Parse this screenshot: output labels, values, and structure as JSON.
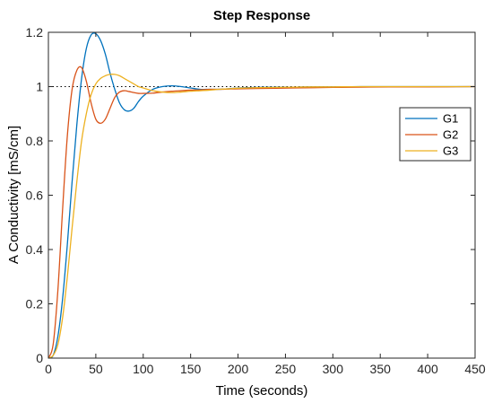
{
  "chart_data": {
    "type": "line",
    "title": "Step Response",
    "xlabel": "Time (seconds)",
    "ylabel": "A Conductivity [mS/cm]",
    "xlim": [
      0,
      450
    ],
    "ylim": [
      0,
      1.2
    ],
    "xticks": [
      0,
      50,
      100,
      150,
      200,
      250,
      300,
      350,
      400,
      450
    ],
    "yticks": [
      0,
      0.2,
      0.4,
      0.6,
      0.8,
      1,
      1.2
    ],
    "xtick_labels": [
      "0",
      "50",
      "100",
      "150",
      "200",
      "250",
      "300",
      "350",
      "400",
      "450"
    ],
    "ytick_labels": [
      "0",
      "0.2",
      "0.4",
      "0.6",
      "0.8",
      "1",
      "1.2"
    ],
    "grid": false,
    "reference_line": {
      "y": 1,
      "style": "dotted",
      "color": "#000000"
    },
    "legend": {
      "placement": "upper-right"
    },
    "series": [
      {
        "name": "G1",
        "color": "#0072BD",
        "x": [
          0,
          5,
          10,
          15,
          20,
          25,
          30,
          35,
          40,
          45,
          50,
          55,
          60,
          65,
          70,
          75,
          80,
          85,
          90,
          95,
          100,
          110,
          120,
          130,
          140,
          150,
          160,
          170,
          180,
          190,
          200,
          220,
          240,
          260,
          280,
          300,
          330,
          360,
          400,
          450
        ],
        "values": [
          0,
          0.01,
          0.08,
          0.22,
          0.42,
          0.65,
          0.86,
          1.03,
          1.14,
          1.19,
          1.195,
          1.17,
          1.12,
          1.05,
          0.99,
          0.94,
          0.915,
          0.91,
          0.92,
          0.945,
          0.965,
          0.99,
          1.0,
          1.003,
          1.0,
          0.995,
          0.99,
          0.99,
          0.99,
          0.992,
          0.995,
          0.997,
          0.998,
          0.998,
          0.999,
          0.999,
          1.0,
          1.0,
          1.0,
          1.0
        ]
      },
      {
        "name": "G2",
        "color": "#D95319",
        "x": [
          0,
          5,
          10,
          15,
          20,
          25,
          30,
          35,
          40,
          45,
          50,
          55,
          60,
          65,
          70,
          75,
          80,
          85,
          90,
          95,
          100,
          110,
          120,
          130,
          140,
          150,
          160,
          170,
          180,
          190,
          200,
          220,
          240,
          260,
          280,
          300,
          330,
          360,
          400,
          450
        ],
        "values": [
          0,
          0.05,
          0.25,
          0.55,
          0.82,
          0.99,
          1.06,
          1.07,
          1.02,
          0.94,
          0.88,
          0.865,
          0.88,
          0.92,
          0.96,
          0.98,
          0.985,
          0.982,
          0.978,
          0.975,
          0.975,
          0.976,
          0.98,
          0.983,
          0.985,
          0.987,
          0.988,
          0.99,
          0.99,
          0.991,
          0.992,
          0.993,
          0.994,
          0.995,
          0.996,
          0.997,
          0.998,
          0.999,
          0.999,
          1.0
        ]
      },
      {
        "name": "G3",
        "color": "#EDB120",
        "x": [
          0,
          5,
          10,
          15,
          20,
          25,
          30,
          35,
          40,
          45,
          50,
          55,
          60,
          65,
          70,
          75,
          80,
          85,
          90,
          95,
          100,
          110,
          120,
          130,
          140,
          150,
          160,
          170,
          180,
          190,
          200,
          220,
          240,
          260,
          280,
          300,
          330,
          360,
          400,
          450
        ],
        "values": [
          0,
          0.01,
          0.05,
          0.15,
          0.3,
          0.48,
          0.65,
          0.8,
          0.9,
          0.97,
          1.01,
          1.03,
          1.04,
          1.045,
          1.045,
          1.04,
          1.03,
          1.02,
          1.01,
          1.0,
          0.995,
          0.985,
          0.98,
          0.978,
          0.98,
          0.983,
          0.985,
          0.987,
          0.99,
          0.992,
          0.994,
          0.996,
          0.997,
          0.998,
          0.999,
          0.999,
          1.0,
          1.0,
          1.0,
          1.0
        ]
      }
    ]
  }
}
